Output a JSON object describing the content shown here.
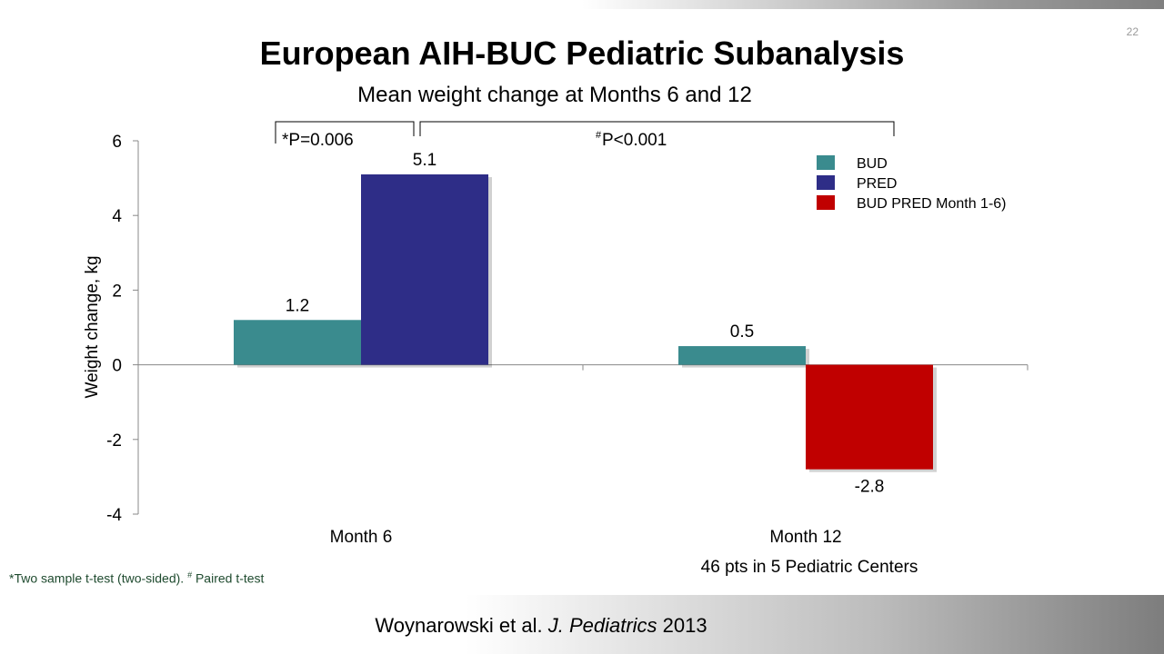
{
  "slide": {
    "number": "22",
    "title": "European AIH-BUC Pediatric Subanalysis",
    "subtitle": "Mean weight change at Months 6 and 12",
    "footnote_part1": "*Two sample t-test (two-sided). ",
    "footnote_sup": "#",
    "footnote_part2": " Paired t-test",
    "citation_authors": "Woynarowski et al. ",
    "citation_journal": "J. Pediatrics",
    "citation_year": " 2013",
    "colors": {
      "bud": "#3a8b8e",
      "pred": "#2e2d87",
      "bud_pred": "#c00000"
    }
  },
  "chart_data": {
    "type": "bar",
    "ylabel": "Weight change, kg",
    "ylim": [
      -4,
      6
    ],
    "yticks": [
      "-4",
      "-2",
      "0",
      "2",
      "4",
      "6"
    ],
    "categories": [
      "Month 6",
      "Month 12"
    ],
    "x_note": "46 pts in 5 Pediatric Centers",
    "series": [
      {
        "name": "BUD",
        "color": "#3a8b8e",
        "values": [
          1.2,
          0.5
        ],
        "labels": [
          "1.2",
          "0.5"
        ]
      },
      {
        "name": "PRED",
        "color": "#2e2d87",
        "values": [
          5.1,
          null
        ],
        "labels": [
          "5.1",
          ""
        ]
      },
      {
        "name": "BUD PRED Month 1-6)",
        "color": "#c00000",
        "values": [
          null,
          -2.8
        ],
        "labels": [
          "",
          "-2.8"
        ]
      }
    ],
    "annotations": [
      {
        "text": "*P=0.006",
        "sup": ""
      },
      {
        "text": "P<0.001",
        "sup": "#"
      }
    ],
    "legend": "top-right"
  }
}
